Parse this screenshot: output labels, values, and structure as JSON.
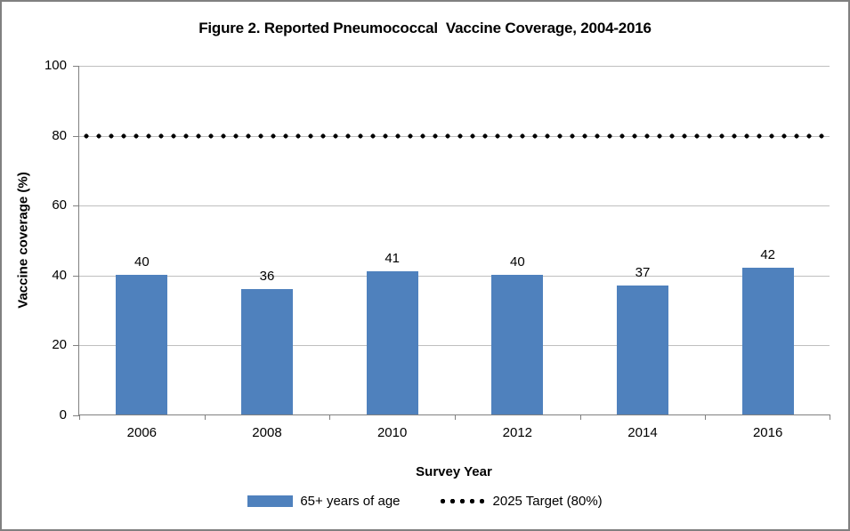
{
  "chart": {
    "title": "Figure 2. Reported Pneumococcal  Vaccine Coverage, 2004-2016",
    "xlabel": "Survey Year",
    "ylabel": "Vaccine coverage (%)"
  },
  "chart_data": {
    "type": "bar",
    "title": "Figure 2. Reported Pneumococcal Vaccine Coverage, 2004-2016",
    "categories": [
      "2006",
      "2008",
      "2010",
      "2012",
      "2014",
      "2016"
    ],
    "series": [
      {
        "name": "65+ years of age",
        "type": "bar",
        "values": [
          40,
          36,
          41,
          40,
          37,
          42
        ],
        "color": "#4F81BD"
      },
      {
        "name": "2025 Target (80%)",
        "type": "dotted-line",
        "value": 80,
        "color": "#000000"
      }
    ],
    "data_labels": [
      40,
      36,
      41,
      40,
      37,
      42
    ],
    "xlabel": "Survey Year",
    "ylabel": "Vaccine coverage (%)",
    "ylim": [
      0,
      100
    ],
    "yticks": [
      0,
      20,
      40,
      60,
      80,
      100
    ],
    "grid": "horizontal",
    "legend_position": "bottom",
    "colors": {
      "bar": "#4F81BD",
      "target_dots": "#000000",
      "axis": "#808080",
      "gridline": "#BFBFBF",
      "frame_border": "#808080",
      "background": "#FFFFFF"
    }
  }
}
